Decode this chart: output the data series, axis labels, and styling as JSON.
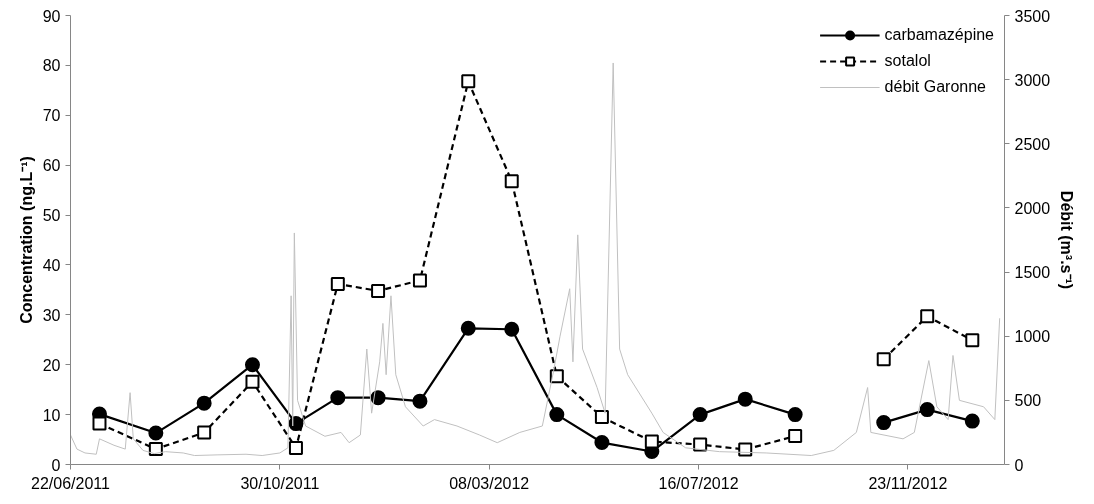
{
  "chart_data": {
    "type": "line",
    "ylabel": "Concentration (ng.L⁻¹)",
    "y2label": "Débit (m³.s⁻¹)",
    "xlim": [
      "2011-06-22",
      "2013-01-22"
    ],
    "xticks": [
      {
        "value": "2011-06-22",
        "label": "22/06/2011"
      },
      {
        "value": "2011-10-30",
        "label": "30/10/2011"
      },
      {
        "value": "2012-03-08",
        "label": "08/03/2012"
      },
      {
        "value": "2012-07-16",
        "label": "16/07/2012"
      },
      {
        "value": "2012-11-23",
        "label": "23/11/2012"
      }
    ],
    "ylim": [
      0,
      90
    ],
    "yticks": [
      0,
      10,
      20,
      30,
      40,
      50,
      60,
      70,
      80,
      90
    ],
    "y2lim": [
      0,
      3500
    ],
    "y2ticks": [
      0,
      500,
      1000,
      1500,
      2000,
      2500,
      3000,
      3500
    ],
    "grid": false,
    "legend": "top right",
    "series": [
      {
        "name": "carbamazépine",
        "color": "#000000",
        "marker": "circle",
        "line_style": "solid",
        "x": [
          "2011-07-10",
          "2011-08-14",
          "2011-09-13",
          "2011-10-13",
          "2011-11-09",
          "2011-12-05",
          "2011-12-30",
          "2012-01-25",
          "2012-02-24",
          "2012-03-22",
          "2012-04-19",
          "2012-05-17",
          "2012-06-17",
          "2012-07-17",
          "2012-08-14",
          "2012-09-14",
          "2012-10-11",
          "2012-11-08",
          "2012-12-05",
          "2013-01-02"
        ],
        "values": [
          10.1,
          6.3,
          12.3,
          20.0,
          8.2,
          13.4,
          13.4,
          12.7,
          27.3,
          27.1,
          10.0,
          4.4,
          2.6,
          10.0,
          13.1,
          10.0,
          null,
          8.4,
          11.0,
          8.7
        ]
      },
      {
        "name": "sotalol",
        "color": "#000000",
        "marker": "square",
        "line_style": "dashed",
        "x": [
          "2011-07-10",
          "2011-08-14",
          "2011-09-13",
          "2011-10-13",
          "2011-11-09",
          "2011-12-05",
          "2011-12-30",
          "2012-01-25",
          "2012-02-24",
          "2012-03-22",
          "2012-04-19",
          "2012-05-17",
          "2012-06-17",
          "2012-07-17",
          "2012-08-14",
          "2012-09-14",
          "2012-10-11",
          "2012-11-08",
          "2012-12-05",
          "2013-01-02"
        ],
        "values": [
          8.2,
          3.1,
          6.4,
          16.6,
          3.3,
          36.2,
          34.8,
          36.9,
          76.8,
          56.8,
          17.7,
          9.5,
          4.6,
          4.0,
          3.0,
          5.7,
          null,
          21.1,
          29.7,
          24.9
        ]
      },
      {
        "name": "débit Garonne",
        "color": "#c0c0c0",
        "marker": "none",
        "line_style": "solid",
        "axis": "y2",
        "x": [
          "2011-06-22",
          "2011-06-26",
          "2011-07-01",
          "2011-07-08",
          "2011-07-10",
          "2011-07-19",
          "2011-07-26",
          "2011-07-29",
          "2011-07-31",
          "2011-08-06",
          "2011-08-13",
          "2011-08-20",
          "2011-08-31",
          "2011-09-07",
          "2011-09-21",
          "2011-10-09",
          "2011-10-19",
          "2011-10-30",
          "2011-11-04",
          "2011-11-06",
          "2011-11-07",
          "2011-11-08",
          "2011-11-10",
          "2011-11-15",
          "2011-11-27",
          "2011-12-07",
          "2011-12-12",
          "2011-12-19",
          "2011-12-23",
          "2011-12-26",
          "2011-12-31",
          "2012-01-02",
          "2012-01-04",
          "2012-01-07",
          "2012-01-10",
          "2012-01-16",
          "2012-01-27",
          "2012-02-03",
          "2012-02-17",
          "2012-03-02",
          "2012-03-13",
          "2012-03-27",
          "2012-04-10",
          "2012-04-17",
          "2012-04-21",
          "2012-04-27",
          "2012-04-29",
          "2012-05-02",
          "2012-05-05",
          "2012-05-14",
          "2012-05-19",
          "2012-05-24",
          "2012-05-28",
          "2012-06-02",
          "2012-06-17",
          "2012-06-24",
          "2012-07-08",
          "2012-07-29",
          "2012-08-27",
          "2012-09-24",
          "2012-10-08",
          "2012-10-22",
          "2012-10-29",
          "2012-10-31",
          "2012-11-20",
          "2012-11-27",
          "2012-12-06",
          "2012-12-11",
          "2012-12-18",
          "2012-12-21",
          "2012-12-25",
          "2013-01-09",
          "2013-01-16",
          "2013-01-19"
        ],
        "values": [
          230,
          120,
          90,
          80,
          200,
          150,
          120,
          560,
          200,
          110,
          85,
          100,
          90,
          70,
          75,
          80,
          70,
          90,
          130,
          1315,
          300,
          1805,
          500,
          300,
          220,
          250,
          170,
          230,
          900,
          400,
          800,
          1100,
          700,
          1315,
          700,
          450,
          300,
          350,
          300,
          230,
          170,
          250,
          300,
          730,
          1000,
          1370,
          800,
          1790,
          900,
          600,
          400,
          3130,
          900,
          700,
          400,
          250,
          130,
          100,
          90,
          70,
          110,
          250,
          600,
          250,
          200,
          250,
          810,
          450,
          350,
          850,
          500,
          450,
          350,
          1140
        ]
      }
    ]
  }
}
